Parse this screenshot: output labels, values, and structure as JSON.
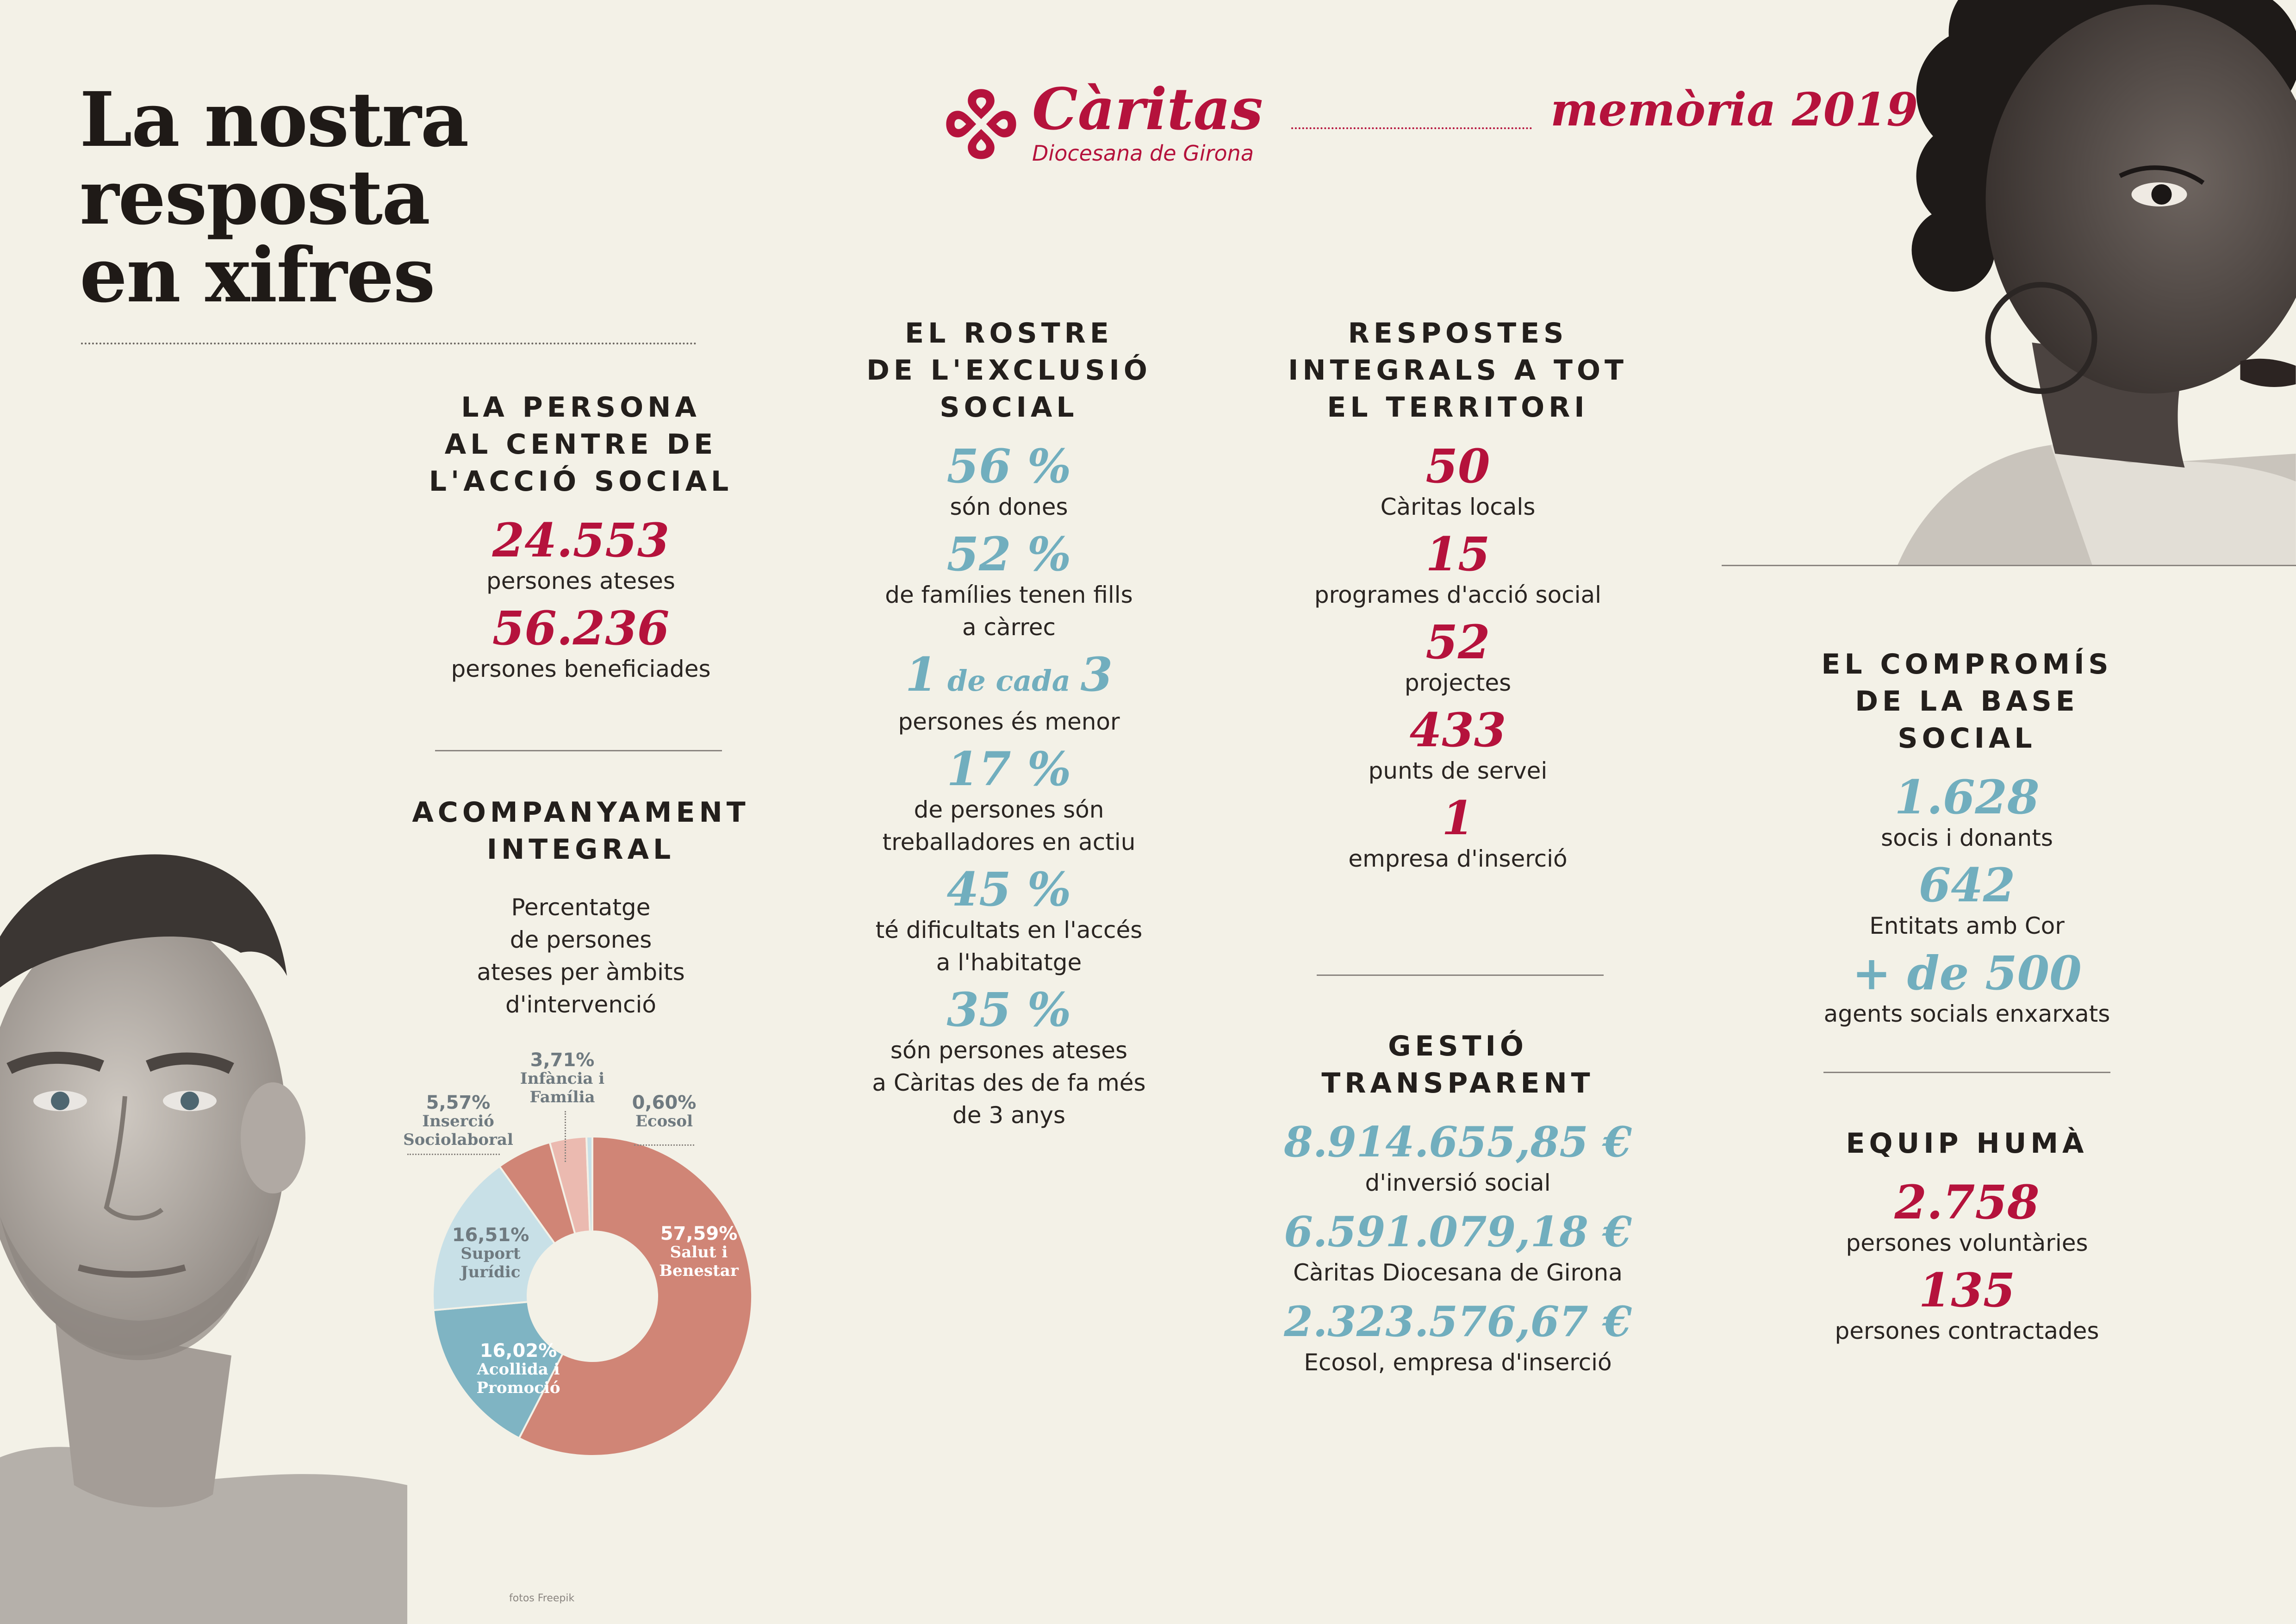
{
  "title": [
    "La nostra",
    "resposta",
    "en xifres"
  ],
  "brand": {
    "name": "Càritas",
    "subtitle": "Diocesana de Girona",
    "memoria_word": "memòria",
    "memoria_year": "2019",
    "color": "#b5123c"
  },
  "persona": {
    "heading": [
      "LA PERSONA",
      "AL CENTRE DE",
      "L'ACCIÓ SOCIAL"
    ],
    "stats": [
      {
        "value": "24.553",
        "label": "persones ateses"
      },
      {
        "value": "56.236",
        "label": "persones beneficiades"
      }
    ]
  },
  "acompanyament": {
    "heading": [
      "ACOMPANYAMENT",
      "INTEGRAL"
    ],
    "intro": [
      "Percentatge",
      "de persones",
      "ateses per àmbits",
      "d'intervenció"
    ]
  },
  "chart_data": {
    "type": "pie",
    "donut": true,
    "categories": [
      "Salut i Benestar",
      "Acollida i Promoció",
      "Suport Jurídic",
      "Inserció Sociolaboral",
      "Infància i Família",
      "Ecosol"
    ],
    "values": [
      57.59,
      16.02,
      16.51,
      5.57,
      3.71,
      0.6
    ],
    "labels": [
      {
        "pct": "57,59%",
        "name": [
          "Salut i",
          "Benestar"
        ]
      },
      {
        "pct": "16,02%",
        "name": [
          "Acollida i",
          "Promoció"
        ]
      },
      {
        "pct": "16,51%",
        "name": [
          "Suport",
          "Jurídic"
        ]
      },
      {
        "pct": "5,57%",
        "name": [
          "Inserció",
          "Sociolaboral"
        ]
      },
      {
        "pct": "3,71%",
        "name": [
          "Infància i",
          "Família"
        ]
      },
      {
        "pct": "0,60%",
        "name": [
          "Ecosol"
        ]
      }
    ],
    "colors": [
      "#d08576",
      "#7fb4c3",
      "#c8e0e7",
      "#d08576",
      "#ebbab0",
      "#c8e0e7"
    ]
  },
  "rostre": {
    "heading": [
      "EL ROSTRE",
      "DE L'EXCLUSIÓ",
      "SOCIAL"
    ],
    "stats": [
      {
        "value": "56 %",
        "label": [
          "són dones"
        ]
      },
      {
        "value": "52 %",
        "label": [
          "de famílies tenen fills",
          "a càrrec"
        ]
      },
      {
        "value_a": "1",
        "value_mid": " de cada ",
        "value_b": "3",
        "label": [
          "persones és menor"
        ]
      },
      {
        "value": "17 %",
        "label": [
          "de persones són",
          "treballadores en actiu"
        ]
      },
      {
        "value": "45 %",
        "label": [
          "té dificultats en l'accés",
          "a l'habitatge"
        ]
      },
      {
        "value": "35 %",
        "label": [
          "són persones ateses",
          "a Càritas des de fa més",
          "de 3 anys"
        ]
      }
    ]
  },
  "respostes": {
    "heading": [
      "RESPOSTES",
      "INTEGRALS A TOT",
      "EL TERRITORI"
    ],
    "stats": [
      {
        "value": "50",
        "label": "Càritas locals"
      },
      {
        "value": "15",
        "label": "programes d'acció social"
      },
      {
        "value": "52",
        "label": "projectes"
      },
      {
        "value": "433",
        "label": "punts de servei"
      },
      {
        "value": "1",
        "label": "empresa d'inserció"
      }
    ]
  },
  "gestio": {
    "heading": [
      "GESTIÓ TRANSPARENT"
    ],
    "stats": [
      {
        "value": "8.914.655,85 €",
        "label": "d'inversió social"
      },
      {
        "value": "6.591.079,18 €",
        "label": "Càritas Diocesana de Girona"
      },
      {
        "value": "2.323.576,67 €",
        "label": "Ecosol, empresa d'inserció"
      }
    ]
  },
  "compromis": {
    "heading": [
      "EL COMPROMÍS",
      "DE LA BASE SOCIAL"
    ],
    "stats": [
      {
        "value": "1.628",
        "label": "socis i donants"
      },
      {
        "value": "642",
        "label": "Entitats amb Cor"
      },
      {
        "value": "+ de 500",
        "label": "agents socials enxarxats"
      }
    ]
  },
  "equip": {
    "heading": [
      "EQUIP HUMÀ"
    ],
    "stats": [
      {
        "value": "2.758",
        "label": "persones voluntàries"
      },
      {
        "value": "135",
        "label": "persones contractades"
      }
    ]
  },
  "credit": "fotos Freepik"
}
